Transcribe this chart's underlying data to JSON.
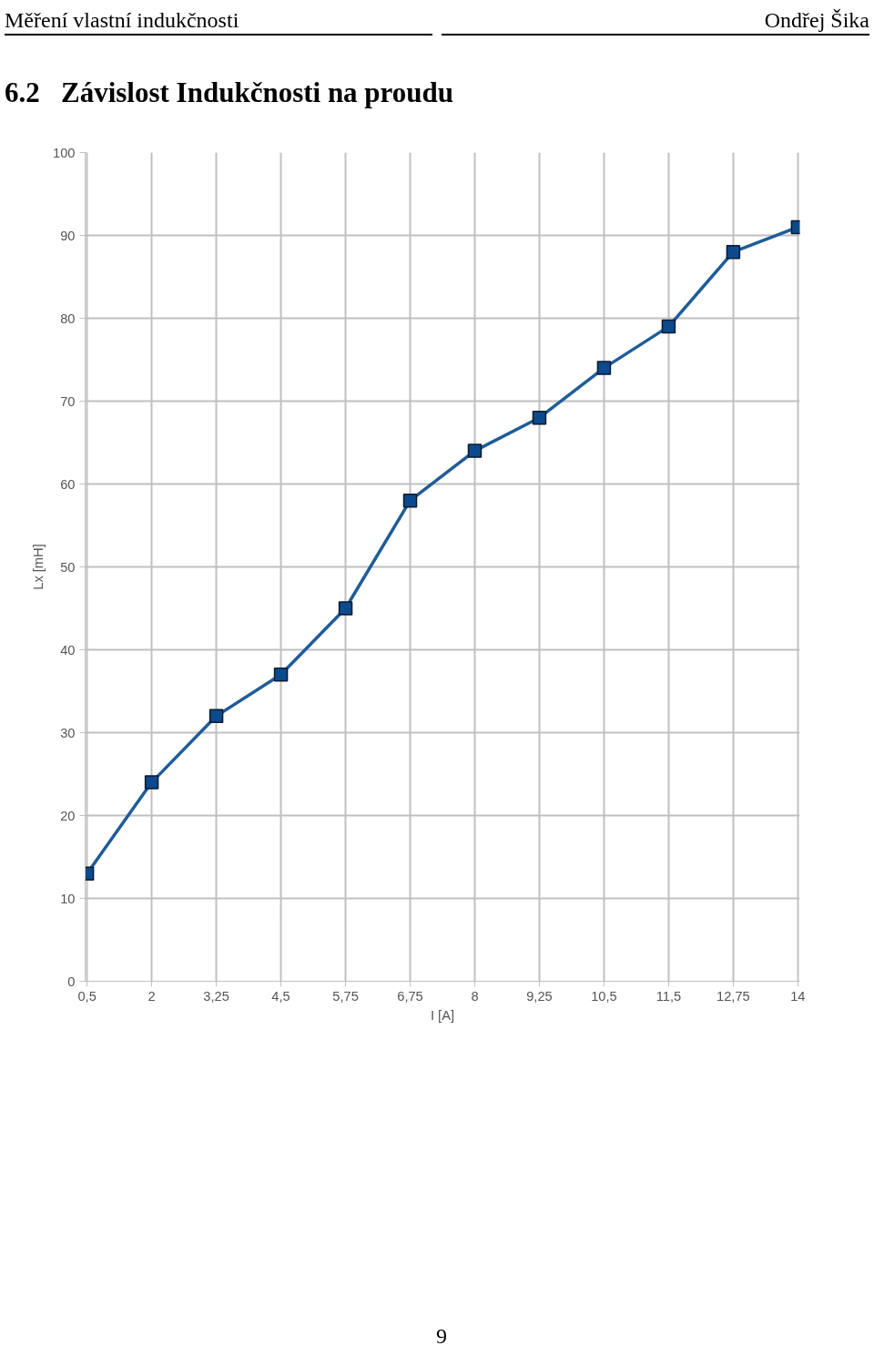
{
  "chart_data": {
    "type": "line",
    "title": "6.2   Závislost Indukčnosti na proudu",
    "xlabel": "I [A]",
    "ylabel": "Lx [mH]",
    "categories": [
      "0,5",
      "2",
      "3,25",
      "4,5",
      "5,75",
      "6,75",
      "8",
      "9,25",
      "10,5",
      "11,5",
      "12,75",
      "14"
    ],
    "series": [
      {
        "color": "#1f5c99",
        "values": [
          13,
          24,
          32,
          37,
          45,
          58,
          64,
          68,
          74,
          79,
          88,
          91
        ]
      }
    ],
    "ylim": [
      0,
      100
    ],
    "yticks": [
      0,
      10,
      20,
      30,
      40,
      50,
      60,
      70,
      80,
      90,
      100
    ],
    "grid": true,
    "marker": "square",
    "line_style": "solid",
    "annotations": [
      "Měření vlastní indukčnosti",
      "Ondřej Šika",
      "9"
    ]
  }
}
